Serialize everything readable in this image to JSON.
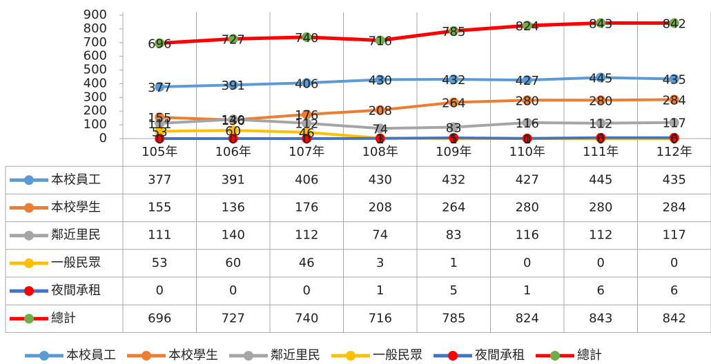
{
  "chart_data": {
    "type": "line",
    "categories": [
      "105年",
      "106年",
      "107年",
      "108年",
      "109年",
      "110年",
      "111年",
      "112年"
    ],
    "series": [
      {
        "name": "本校員工",
        "color": "#5b9bd5",
        "marker_color": "#5b9bd5",
        "values": [
          377,
          391,
          406,
          430,
          432,
          427,
          445,
          435
        ]
      },
      {
        "name": "本校學生",
        "color": "#ed7d31",
        "marker_color": "#ed7d31",
        "values": [
          155,
          136,
          176,
          208,
          264,
          280,
          280,
          284
        ]
      },
      {
        "name": "鄰近里民",
        "color": "#a5a5a5",
        "marker_color": "#a5a5a5",
        "values": [
          111,
          140,
          112,
          74,
          83,
          116,
          112,
          117
        ]
      },
      {
        "name": "一般民眾",
        "color": "#ffc000",
        "marker_color": "#ffc000",
        "values": [
          53,
          60,
          46,
          3,
          1,
          0,
          0,
          0
        ]
      },
      {
        "name": "夜間承租",
        "color": "#4472c4",
        "marker_color": "#ff0000",
        "values": [
          0,
          0,
          0,
          1,
          5,
          1,
          6,
          6
        ]
      },
      {
        "name": "總計",
        "color": "#ff0000",
        "marker_color": "#70ad47",
        "values": [
          696,
          727,
          740,
          716,
          785,
          824,
          843,
          842
        ]
      }
    ],
    "ylim": [
      0,
      900
    ],
    "yticks": [
      0,
      100,
      200,
      300,
      400,
      500,
      600,
      700,
      800,
      900
    ],
    "data_table": true,
    "legend": "bottom"
  }
}
